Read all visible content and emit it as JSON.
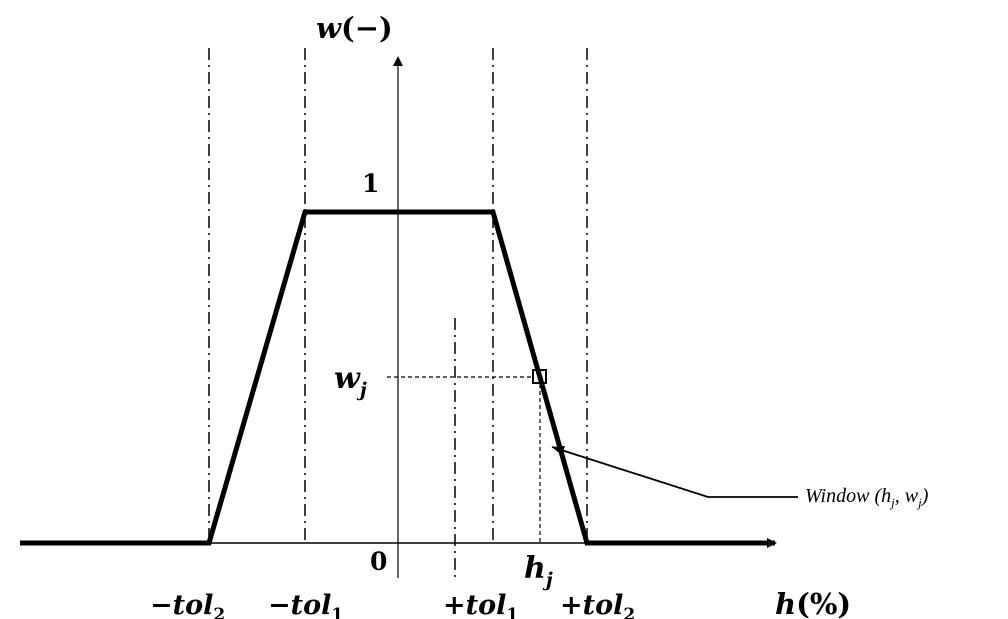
{
  "axes": {
    "y_label": {
      "main": "w",
      "suffix": "(−)"
    },
    "x_label": {
      "main": "h",
      "suffix": "(%)"
    },
    "origin": "0",
    "y_one": "1"
  },
  "ticks": {
    "neg_tol2": {
      "sign": "−",
      "name": "tol",
      "sub": "2"
    },
    "neg_tol1": {
      "sign": "−",
      "name": "tol",
      "sub": "1"
    },
    "pos_tol1": {
      "sign": "+",
      "name": "tol",
      "sub": "1"
    },
    "pos_tol2": {
      "sign": "+",
      "name": "tol",
      "sub": "2"
    }
  },
  "point": {
    "w_main": "w",
    "w_sub": "j",
    "h_main": "h",
    "h_sub": "j"
  },
  "annotation": {
    "prefix": "Window (h",
    "sub1": "j",
    "mid": ", w",
    "sub2": "j",
    "suffix": ")"
  },
  "colors": {
    "ink": "#000000",
    "background": "#ffffff"
  }
}
